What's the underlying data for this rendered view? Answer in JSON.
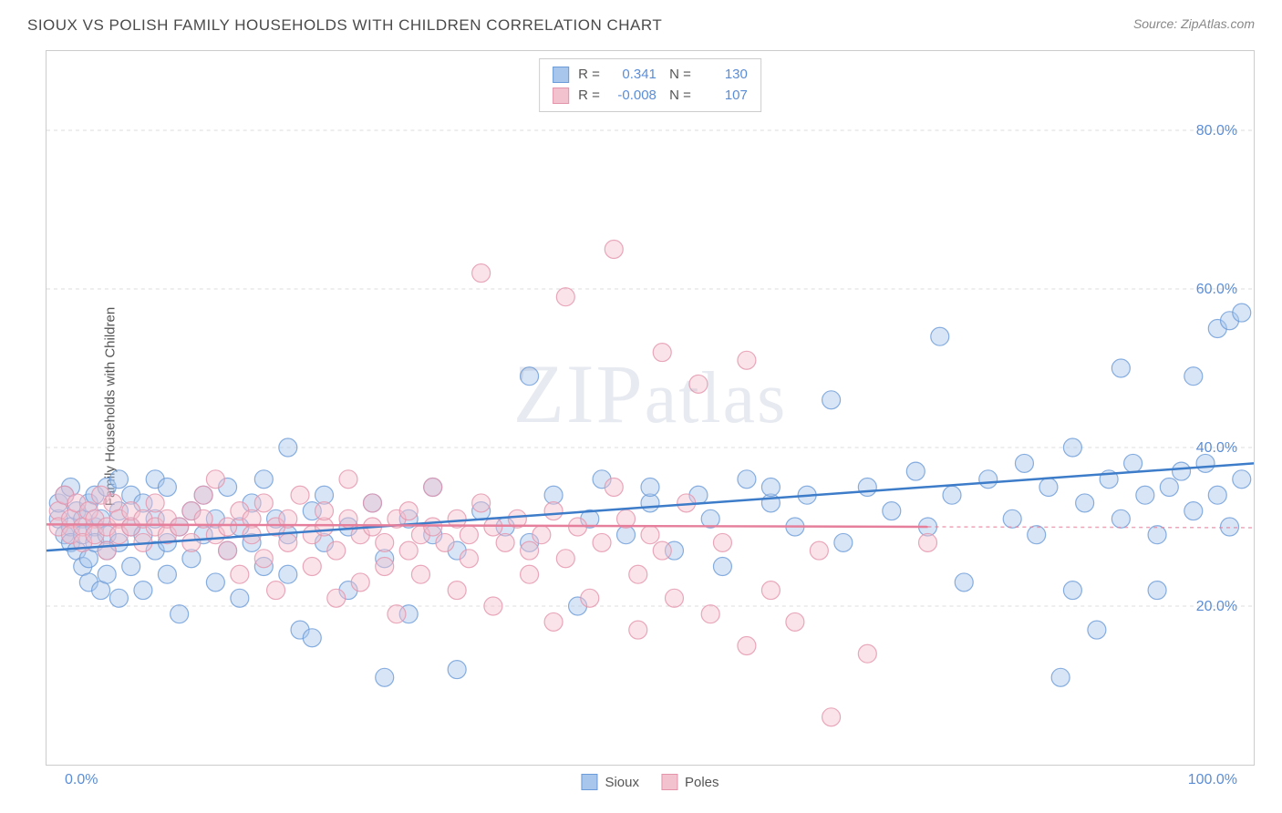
{
  "title": "SIOUX VS POLISH FAMILY HOUSEHOLDS WITH CHILDREN CORRELATION CHART",
  "source": "Source: ZipAtlas.com",
  "ylabel": "Family Households with Children",
  "watermark": "ZIPatlas",
  "chart": {
    "type": "scatter",
    "background_color": "#ffffff",
    "grid_color": "#dddddd",
    "border_color": "#cccccc",
    "xlim": [
      0,
      100
    ],
    "ylim": [
      0,
      90
    ],
    "xtick_labels": [
      "0.0%",
      "100.0%"
    ],
    "ytick_positions": [
      20,
      40,
      60,
      80
    ],
    "ytick_labels": [
      "20.0%",
      "40.0%",
      "60.0%",
      "80.0%"
    ],
    "xtick_minor_positions": [
      5,
      50,
      95
    ],
    "marker_radius": 10,
    "marker_opacity": 0.45,
    "series": [
      {
        "name": "Sioux",
        "color_fill": "#a8c5ec",
        "color_stroke": "#6b9bd8",
        "R": "0.341",
        "N": "130",
        "trend": {
          "x1": 0,
          "y1": 27,
          "x2": 100,
          "y2": 38,
          "dash_after_x": 100,
          "color": "#3d7cc9",
          "width": 2.5
        },
        "points": [
          [
            1,
            31
          ],
          [
            1,
            33
          ],
          [
            1.5,
            29
          ],
          [
            1.5,
            34
          ],
          [
            2,
            30
          ],
          [
            2,
            28
          ],
          [
            2,
            35
          ],
          [
            2.5,
            27
          ],
          [
            2.5,
            32
          ],
          [
            3,
            31
          ],
          [
            3,
            29
          ],
          [
            3,
            25
          ],
          [
            3.5,
            33
          ],
          [
            3.5,
            26
          ],
          [
            3.5,
            23
          ],
          [
            4,
            30
          ],
          [
            4,
            34
          ],
          [
            4,
            28
          ],
          [
            4.5,
            22
          ],
          [
            4.5,
            31
          ],
          [
            5,
            29
          ],
          [
            5,
            35
          ],
          [
            5,
            27
          ],
          [
            5,
            24
          ],
          [
            6,
            32
          ],
          [
            6,
            36
          ],
          [
            6,
            21
          ],
          [
            6,
            28
          ],
          [
            7,
            30
          ],
          [
            7,
            25
          ],
          [
            7,
            34
          ],
          [
            8,
            29
          ],
          [
            8,
            33
          ],
          [
            8,
            22
          ],
          [
            9,
            31
          ],
          [
            9,
            27
          ],
          [
            9,
            36
          ],
          [
            10,
            28
          ],
          [
            10,
            24
          ],
          [
            10,
            35
          ],
          [
            11,
            30
          ],
          [
            11,
            19
          ],
          [
            12,
            32
          ],
          [
            12,
            26
          ],
          [
            13,
            29
          ],
          [
            13,
            34
          ],
          [
            14,
            31
          ],
          [
            14,
            23
          ],
          [
            15,
            27
          ],
          [
            15,
            35
          ],
          [
            16,
            30
          ],
          [
            16,
            21
          ],
          [
            17,
            33
          ],
          [
            17,
            28
          ],
          [
            18,
            25
          ],
          [
            18,
            36
          ],
          [
            19,
            31
          ],
          [
            20,
            29
          ],
          [
            20,
            24
          ],
          [
            20,
            40
          ],
          [
            21,
            17
          ],
          [
            22,
            32
          ],
          [
            22,
            16
          ],
          [
            23,
            28
          ],
          [
            23,
            34
          ],
          [
            25,
            30
          ],
          [
            25,
            22
          ],
          [
            27,
            33
          ],
          [
            28,
            26
          ],
          [
            28,
            11
          ],
          [
            30,
            31
          ],
          [
            30,
            19
          ],
          [
            32,
            29
          ],
          [
            32,
            35
          ],
          [
            34,
            27
          ],
          [
            34,
            12
          ],
          [
            36,
            32
          ],
          [
            38,
            30
          ],
          [
            40,
            28
          ],
          [
            40,
            49
          ],
          [
            42,
            34
          ],
          [
            44,
            20
          ],
          [
            45,
            31
          ],
          [
            46,
            36
          ],
          [
            48,
            29
          ],
          [
            50,
            33
          ],
          [
            50,
            35
          ],
          [
            52,
            27
          ],
          [
            54,
            34
          ],
          [
            55,
            31
          ],
          [
            56,
            25
          ],
          [
            58,
            36
          ],
          [
            60,
            33
          ],
          [
            60,
            35
          ],
          [
            62,
            30
          ],
          [
            63,
            34
          ],
          [
            65,
            46
          ],
          [
            66,
            28
          ],
          [
            68,
            35
          ],
          [
            70,
            32
          ],
          [
            72,
            37
          ],
          [
            73,
            30
          ],
          [
            74,
            54
          ],
          [
            75,
            34
          ],
          [
            76,
            23
          ],
          [
            78,
            36
          ],
          [
            80,
            31
          ],
          [
            81,
            38
          ],
          [
            82,
            29
          ],
          [
            83,
            35
          ],
          [
            84,
            11
          ],
          [
            85,
            40
          ],
          [
            85,
            22
          ],
          [
            86,
            33
          ],
          [
            87,
            17
          ],
          [
            88,
            36
          ],
          [
            89,
            31
          ],
          [
            89,
            50
          ],
          [
            90,
            38
          ],
          [
            91,
            34
          ],
          [
            92,
            29
          ],
          [
            92,
            22
          ],
          [
            93,
            35
          ],
          [
            94,
            37
          ],
          [
            95,
            32
          ],
          [
            95,
            49
          ],
          [
            96,
            38
          ],
          [
            97,
            55
          ],
          [
            97,
            34
          ],
          [
            98,
            56
          ],
          [
            98,
            30
          ],
          [
            99,
            36
          ],
          [
            99,
            57
          ]
        ]
      },
      {
        "name": "Poles",
        "color_fill": "#f3c2cf",
        "color_stroke": "#e394ab",
        "R": "-0.008",
        "N": "107",
        "trend": {
          "x1": 0,
          "y1": 30.3,
          "x2": 73,
          "y2": 30,
          "dash_after_x": 73,
          "color": "#e57f9b",
          "width": 2.5
        },
        "points": [
          [
            1,
            32
          ],
          [
            1,
            30
          ],
          [
            1.5,
            34
          ],
          [
            2,
            31
          ],
          [
            2,
            29
          ],
          [
            2.5,
            33
          ],
          [
            3,
            30
          ],
          [
            3,
            28
          ],
          [
            3.5,
            32
          ],
          [
            4,
            31
          ],
          [
            4,
            29
          ],
          [
            4.5,
            34
          ],
          [
            5,
            30
          ],
          [
            5,
            27
          ],
          [
            5.5,
            33
          ],
          [
            6,
            31
          ],
          [
            6,
            29
          ],
          [
            7,
            30
          ],
          [
            7,
            32
          ],
          [
            8,
            28
          ],
          [
            8,
            31
          ],
          [
            9,
            30
          ],
          [
            9,
            33
          ],
          [
            10,
            29
          ],
          [
            10,
            31
          ],
          [
            11,
            30
          ],
          [
            12,
            28
          ],
          [
            12,
            32
          ],
          [
            13,
            31
          ],
          [
            13,
            34
          ],
          [
            14,
            29
          ],
          [
            14,
            36
          ],
          [
            15,
            30
          ],
          [
            15,
            27
          ],
          [
            16,
            32
          ],
          [
            16,
            24
          ],
          [
            17,
            31
          ],
          [
            17,
            29
          ],
          [
            18,
            33
          ],
          [
            18,
            26
          ],
          [
            19,
            30
          ],
          [
            19,
            22
          ],
          [
            20,
            31
          ],
          [
            20,
            28
          ],
          [
            21,
            34
          ],
          [
            22,
            29
          ],
          [
            22,
            25
          ],
          [
            23,
            30
          ],
          [
            23,
            32
          ],
          [
            24,
            27
          ],
          [
            24,
            21
          ],
          [
            25,
            31
          ],
          [
            25,
            36
          ],
          [
            26,
            29
          ],
          [
            26,
            23
          ],
          [
            27,
            30
          ],
          [
            27,
            33
          ],
          [
            28,
            28
          ],
          [
            28,
            25
          ],
          [
            29,
            31
          ],
          [
            29,
            19
          ],
          [
            30,
            32
          ],
          [
            30,
            27
          ],
          [
            31,
            29
          ],
          [
            31,
            24
          ],
          [
            32,
            30
          ],
          [
            32,
            35
          ],
          [
            33,
            28
          ],
          [
            34,
            31
          ],
          [
            34,
            22
          ],
          [
            35,
            29
          ],
          [
            35,
            26
          ],
          [
            36,
            62
          ],
          [
            36,
            33
          ],
          [
            37,
            30
          ],
          [
            37,
            20
          ],
          [
            38,
            28
          ],
          [
            39,
            31
          ],
          [
            40,
            27
          ],
          [
            40,
            24
          ],
          [
            41,
            29
          ],
          [
            42,
            32
          ],
          [
            42,
            18
          ],
          [
            43,
            26
          ],
          [
            43,
            59
          ],
          [
            44,
            30
          ],
          [
            45,
            21
          ],
          [
            46,
            28
          ],
          [
            47,
            35
          ],
          [
            47,
            65
          ],
          [
            48,
            31
          ],
          [
            49,
            24
          ],
          [
            49,
            17
          ],
          [
            50,
            29
          ],
          [
            51,
            52
          ],
          [
            51,
            27
          ],
          [
            52,
            21
          ],
          [
            53,
            33
          ],
          [
            54,
            48
          ],
          [
            55,
            19
          ],
          [
            56,
            28
          ],
          [
            58,
            15
          ],
          [
            58,
            51
          ],
          [
            60,
            22
          ],
          [
            62,
            18
          ],
          [
            64,
            27
          ],
          [
            65,
            6
          ],
          [
            68,
            14
          ],
          [
            73,
            28
          ]
        ]
      }
    ]
  },
  "legend_bottom": [
    {
      "label": "Sioux",
      "fill": "#a8c5ec",
      "stroke": "#6b9bd8"
    },
    {
      "label": "Poles",
      "fill": "#f3c2cf",
      "stroke": "#e394ab"
    }
  ]
}
